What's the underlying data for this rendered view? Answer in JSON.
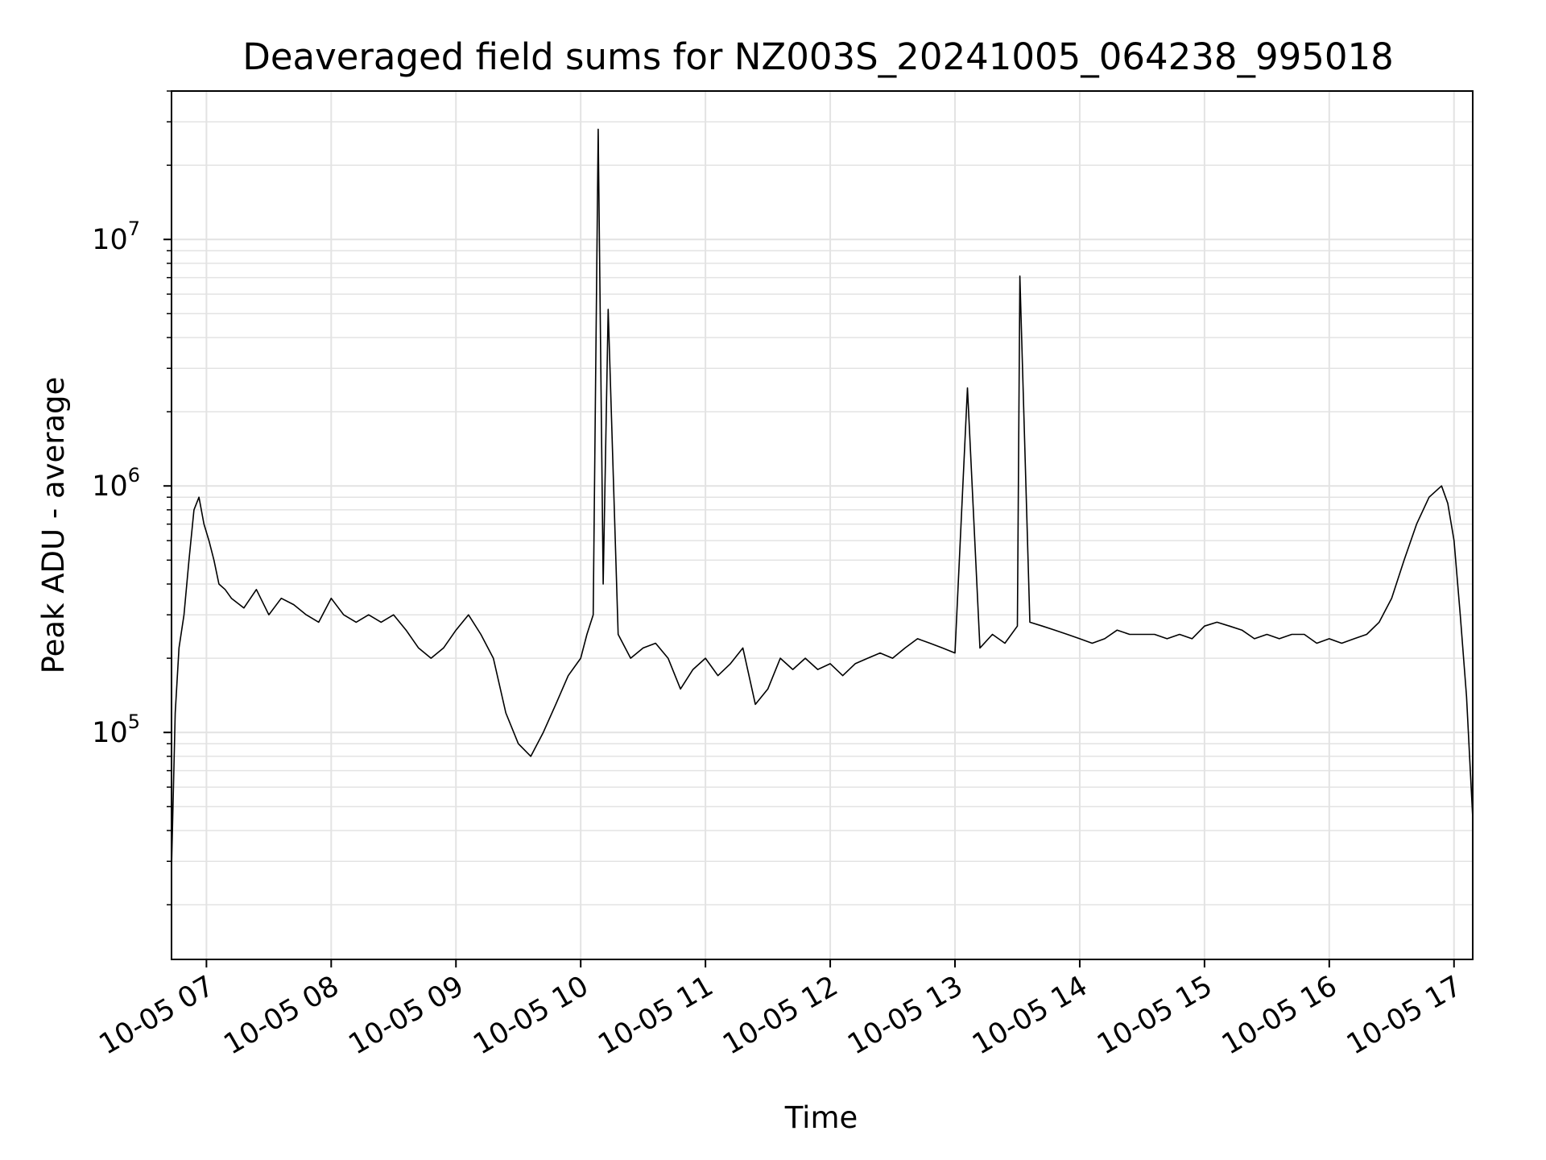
{
  "chart_data": {
    "type": "line",
    "title": "Deaveraged field sums for NZ003S_20241005_064238_995018",
    "xlabel": "Time",
    "ylabel": "Peak ADU - average",
    "yscale": "log",
    "ylim": [
      12000,
      40000000
    ],
    "xlim": [
      6.72,
      17.15
    ],
    "grid": true,
    "line_color": "#000000",
    "grid_color": "#e3e3e3",
    "x_ticks": [
      {
        "value": 7,
        "label": "10-05 07"
      },
      {
        "value": 8,
        "label": "10-05 08"
      },
      {
        "value": 9,
        "label": "10-05 09"
      },
      {
        "value": 10,
        "label": "10-05 10"
      },
      {
        "value": 11,
        "label": "10-05 11"
      },
      {
        "value": 12,
        "label": "10-05 12"
      },
      {
        "value": 13,
        "label": "10-05 13"
      },
      {
        "value": 14,
        "label": "10-05 14"
      },
      {
        "value": 15,
        "label": "10-05 15"
      },
      {
        "value": 16,
        "label": "10-05 16"
      },
      {
        "value": 17,
        "label": "10-05 17"
      }
    ],
    "y_ticks": [
      {
        "value": 100000,
        "base": "10",
        "exp": "5"
      },
      {
        "value": 1000000,
        "base": "10",
        "exp": "6"
      },
      {
        "value": 10000000,
        "base": "10",
        "exp": "7"
      }
    ],
    "series": [
      {
        "x": [
          6.72,
          6.75,
          6.78,
          6.82,
          6.86,
          6.9,
          6.94,
          6.98,
          7.02,
          7.06,
          7.1,
          7.15,
          7.2,
          7.3,
          7.4,
          7.5,
          7.6,
          7.7,
          7.8,
          7.9,
          8.0,
          8.1,
          8.2,
          8.3,
          8.4,
          8.5,
          8.6,
          8.7,
          8.8,
          8.9,
          9.0,
          9.1,
          9.2,
          9.3,
          9.4,
          9.5,
          9.6,
          9.7,
          9.8,
          9.9,
          10.0,
          10.05,
          10.1,
          10.14,
          10.18,
          10.22,
          10.3,
          10.4,
          10.5,
          10.6,
          10.7,
          10.8,
          10.9,
          11.0,
          11.1,
          11.2,
          11.3,
          11.4,
          11.5,
          11.6,
          11.7,
          11.8,
          11.9,
          12.0,
          12.1,
          12.2,
          12.3,
          12.4,
          12.5,
          12.6,
          12.7,
          12.8,
          12.9,
          13.0,
          13.1,
          13.2,
          13.3,
          13.4,
          13.5,
          13.52,
          13.6,
          13.7,
          13.8,
          13.9,
          14.0,
          14.1,
          14.2,
          14.3,
          14.4,
          14.5,
          14.6,
          14.7,
          14.8,
          14.9,
          15.0,
          15.1,
          15.2,
          15.3,
          15.4,
          15.5,
          15.6,
          15.7,
          15.8,
          15.9,
          16.0,
          16.1,
          16.2,
          16.3,
          16.4,
          16.5,
          16.6,
          16.7,
          16.8,
          16.9,
          16.95,
          17.0,
          17.05,
          17.1,
          17.15
        ],
        "y": [
          28000,
          120000,
          220000,
          300000,
          500000,
          800000,
          900000,
          700000,
          600000,
          500000,
          400000,
          380000,
          350000,
          320000,
          380000,
          300000,
          350000,
          330000,
          300000,
          280000,
          350000,
          300000,
          280000,
          300000,
          280000,
          300000,
          260000,
          220000,
          200000,
          220000,
          260000,
          300000,
          250000,
          200000,
          120000,
          90000,
          80000,
          100000,
          130000,
          170000,
          200000,
          250000,
          300000,
          28000000,
          400000,
          5200000,
          250000,
          200000,
          220000,
          230000,
          200000,
          150000,
          180000,
          200000,
          170000,
          190000,
          220000,
          130000,
          150000,
          200000,
          180000,
          200000,
          180000,
          190000,
          170000,
          190000,
          200000,
          210000,
          200000,
          220000,
          240000,
          230000,
          220000,
          210000,
          2500000,
          220000,
          250000,
          230000,
          270000,
          7100000,
          280000,
          270000,
          260000,
          250000,
          240000,
          230000,
          240000,
          260000,
          250000,
          250000,
          250000,
          240000,
          250000,
          240000,
          270000,
          280000,
          270000,
          260000,
          240000,
          250000,
          240000,
          250000,
          250000,
          230000,
          240000,
          230000,
          240000,
          250000,
          280000,
          350000,
          500000,
          700000,
          900000,
          1000000,
          850000,
          600000,
          300000,
          140000,
          45000
        ]
      }
    ]
  }
}
